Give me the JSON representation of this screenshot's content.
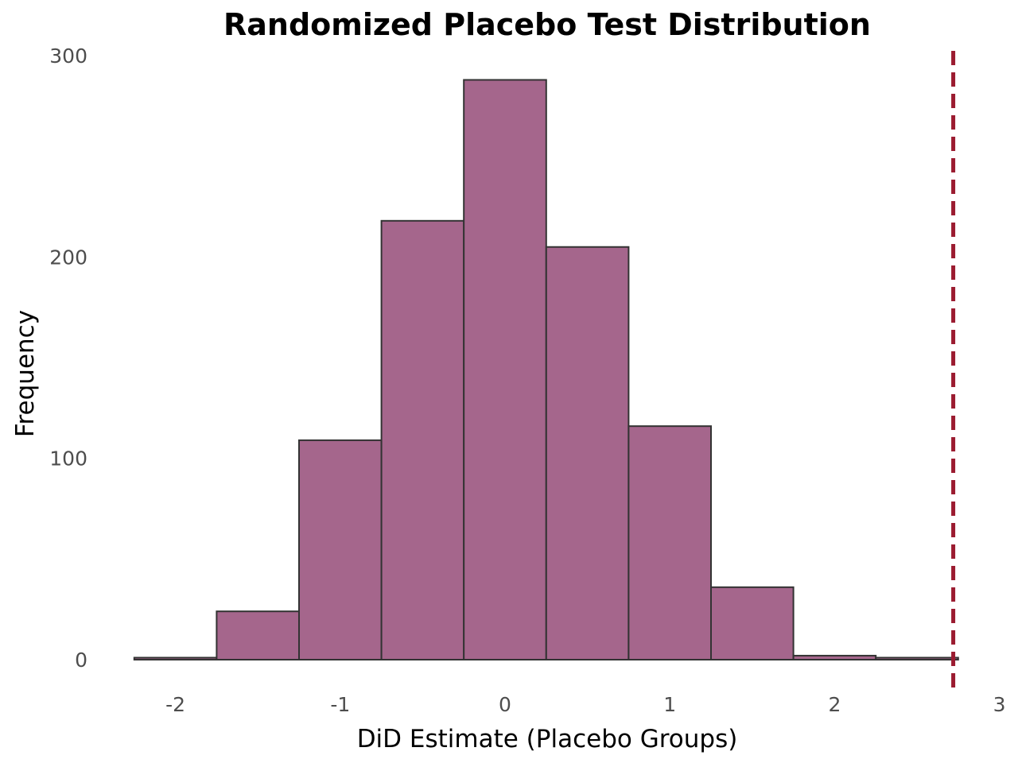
{
  "chart_data": {
    "type": "bar",
    "title": "Randomized Placebo Test Distribution",
    "xlabel": "DiD Estimate (Placebo Groups)",
    "ylabel": "Frequency",
    "xlim": [
      -2.25,
      3.0
    ],
    "ylim": [
      0,
      300
    ],
    "x_ticks": [
      -2,
      -1,
      0,
      1,
      2,
      3
    ],
    "x_tick_labels": [
      "-2",
      "-1",
      "0",
      "1",
      "2",
      "3"
    ],
    "y_ticks": [
      0,
      100,
      200,
      300
    ],
    "y_tick_labels": [
      "0",
      "100",
      "200",
      "300"
    ],
    "bin_width": 0.5,
    "bins": [
      {
        "x0": -2.25,
        "x1": -1.75,
        "count": 1
      },
      {
        "x0": -1.75,
        "x1": -1.25,
        "count": 24
      },
      {
        "x0": -1.25,
        "x1": -0.75,
        "count": 109
      },
      {
        "x0": -0.75,
        "x1": -0.25,
        "count": 218
      },
      {
        "x0": -0.25,
        "x1": 0.25,
        "count": 288
      },
      {
        "x0": 0.25,
        "x1": 0.75,
        "count": 205
      },
      {
        "x0": 0.75,
        "x1": 1.25,
        "count": 116
      },
      {
        "x0": 1.25,
        "x1": 1.75,
        "count": 36
      },
      {
        "x0": 1.75,
        "x1": 2.25,
        "count": 2
      },
      {
        "x0": 2.25,
        "x1": 2.75,
        "count": 1
      }
    ],
    "reference_line": {
      "x": 2.72,
      "style": "dashed",
      "color": "#9b1b30"
    },
    "bar_color": "#a5668c",
    "grid": false
  }
}
